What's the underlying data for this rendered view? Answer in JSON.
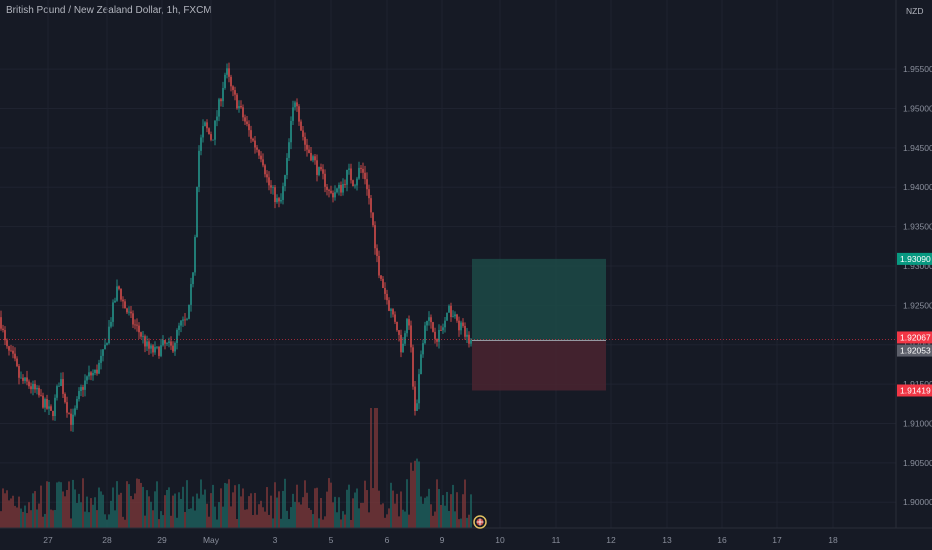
{
  "header": {
    "title": "British Pound / New Zealand Dollar, 1h, FXCM"
  },
  "price_axis": {
    "currency_label": "NZD",
    "tick_labels": [
      "1.90000",
      "1.90500",
      "1.91000",
      "1.91500",
      "1.92000",
      "1.92500",
      "1.93000",
      "1.93500",
      "1.94000",
      "1.94500",
      "1.95000",
      "1.95500"
    ]
  },
  "time_axis": {
    "tick_labels": [
      "27",
      "28",
      "29",
      "May",
      "3",
      "5",
      "6",
      "9",
      "10",
      "11",
      "12",
      "13",
      "16",
      "17",
      "18"
    ]
  },
  "colors": {
    "background": "#161a25",
    "up": "#26a69a",
    "down": "#ef5350",
    "target_zone": "#1c4a47",
    "stop_zone": "#4a2530",
    "grid": "#1f2330"
  },
  "badges": {
    "target": {
      "text": "1.93090",
      "color": "#089981"
    },
    "current": {
      "text": "1.92067",
      "color": "#f23645"
    },
    "entry": {
      "text": "1.92053",
      "color": "#5d606b"
    },
    "stop": {
      "text": "1.91419",
      "color": "#f23645"
    }
  },
  "chart_data": {
    "type": "candlestick",
    "title": "British Pound / New Zealand Dollar, 1h, FXCM",
    "ylabel": "NZD",
    "ylim": [
      1.898,
      1.9625
    ],
    "x_ticks": [
      "27",
      "28",
      "29",
      "May",
      "3",
      "5",
      "6",
      "9",
      "10",
      "11",
      "12",
      "13",
      "16",
      "17",
      "18"
    ],
    "price_path": [
      [
        0,
        1.9235
      ],
      [
        6,
        1.9195
      ],
      [
        14,
        1.918
      ],
      [
        20,
        1.9155
      ],
      [
        28,
        1.915
      ],
      [
        36,
        1.914
      ],
      [
        44,
        1.9125
      ],
      [
        52,
        1.911
      ],
      [
        60,
        1.916
      ],
      [
        66,
        1.9125
      ],
      [
        72,
        1.91
      ],
      [
        80,
        1.914
      ],
      [
        88,
        1.916
      ],
      [
        96,
        1.9165
      ],
      [
        104,
        1.919
      ],
      [
        112,
        1.924
      ],
      [
        118,
        1.9275
      ],
      [
        124,
        1.925
      ],
      [
        132,
        1.923
      ],
      [
        140,
        1.9215
      ],
      [
        148,
        1.9195
      ],
      [
        156,
        1.919
      ],
      [
        164,
        1.92
      ],
      [
        172,
        1.9195
      ],
      [
        180,
        1.9225
      ],
      [
        188,
        1.923
      ],
      [
        194,
        1.931
      ],
      [
        198,
        1.944
      ],
      [
        204,
        1.948
      ],
      [
        212,
        1.946
      ],
      [
        220,
        1.951
      ],
      [
        226,
        1.955
      ],
      [
        232,
        1.952
      ],
      [
        238,
        1.9505
      ],
      [
        246,
        1.948
      ],
      [
        254,
        1.9455
      ],
      [
        262,
        1.944
      ],
      [
        268,
        1.9405
      ],
      [
        274,
        1.939
      ],
      [
        280,
        1.9375
      ],
      [
        286,
        1.942
      ],
      [
        292,
        1.949
      ],
      [
        296,
        1.952
      ],
      [
        300,
        1.948
      ],
      [
        306,
        1.945
      ],
      [
        312,
        1.944
      ],
      [
        318,
        1.942
      ],
      [
        324,
        1.941
      ],
      [
        330,
        1.939
      ],
      [
        336,
        1.9395
      ],
      [
        342,
        1.94
      ],
      [
        348,
        1.942
      ],
      [
        354,
        1.9405
      ],
      [
        360,
        1.9425
      ],
      [
        366,
        1.941
      ],
      [
        372,
        1.936
      ],
      [
        378,
        1.93
      ],
      [
        384,
        1.927
      ],
      [
        390,
        1.9245
      ],
      [
        396,
        1.923
      ],
      [
        402,
        1.919
      ],
      [
        408,
        1.925
      ],
      [
        412,
        1.917
      ],
      [
        416,
        1.91
      ],
      [
        420,
        1.918
      ],
      [
        426,
        1.924
      ],
      [
        432,
        1.922
      ],
      [
        438,
        1.921
      ],
      [
        444,
        1.9225
      ],
      [
        450,
        1.9245
      ],
      [
        456,
        1.923
      ],
      [
        462,
        1.922
      ],
      [
        468,
        1.9205
      ],
      [
        472,
        1.9205
      ]
    ],
    "levels": {
      "target": 1.9309,
      "entry": 1.92053,
      "current": 1.92067,
      "stop": 1.91419
    },
    "grid": true
  }
}
